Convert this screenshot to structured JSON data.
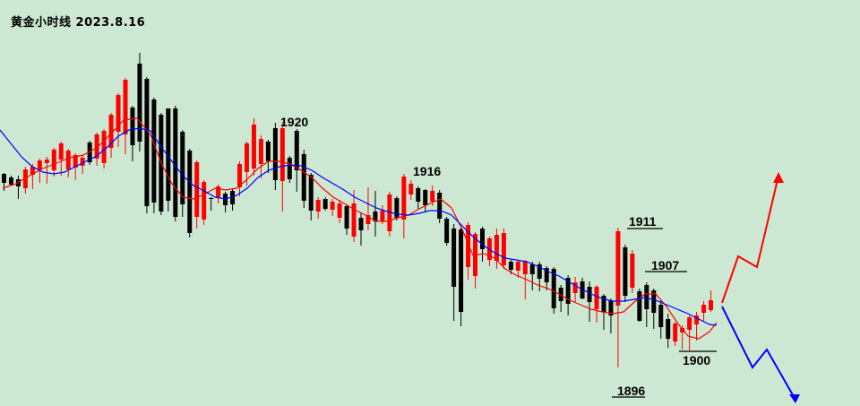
{
  "chart_data": {
    "type": "candlestick",
    "title": "黄金小时线  2023.8.16",
    "annotations": [
      {
        "label": "1920",
        "value": 1920
      },
      {
        "label": "1916",
        "value": 1916
      },
      {
        "label": "1911",
        "value": 1911
      },
      {
        "label": "1907",
        "value": 1907
      },
      {
        "label": "1900",
        "value": 1900
      },
      {
        "label": "1896",
        "value": 1896
      }
    ],
    "series": [
      {
        "kind": "moving-average",
        "color": "#ff0000"
      },
      {
        "kind": "moving-average",
        "color": "#0000ff"
      }
    ],
    "projections": [
      {
        "direction": "up",
        "color": "#ff0000"
      },
      {
        "direction": "down",
        "color": "#0000ff"
      }
    ],
    "colors": {
      "bullish": "#ff0000",
      "bearish": "#000000",
      "background": "#cde8d2"
    },
    "candles": [
      [
        1,
        193,
        213,
        194,
        204,
        0
      ],
      [
        2,
        196,
        207,
        198,
        206,
        0
      ],
      [
        3,
        196,
        222,
        200,
        208,
        0
      ],
      [
        4,
        186,
        216,
        189,
        210,
        1
      ],
      [
        5,
        183,
        211,
        186,
        195,
        1
      ],
      [
        6,
        177,
        204,
        179,
        189,
        1
      ],
      [
        7,
        175,
        205,
        178,
        182,
        1
      ],
      [
        8,
        165,
        197,
        167,
        190,
        1
      ],
      [
        9,
        158,
        196,
        160,
        178,
        1
      ],
      [
        10,
        166,
        198,
        168,
        189,
        1
      ],
      [
        11,
        171,
        201,
        173,
        187,
        1
      ],
      [
        12,
        174,
        194,
        176,
        185,
        1
      ],
      [
        13,
        157,
        184,
        159,
        181,
        0
      ],
      [
        14,
        148,
        185,
        150,
        177,
        1
      ],
      [
        15,
        144,
        188,
        146,
        182,
        1
      ],
      [
        16,
        126,
        176,
        128,
        165,
        1
      ],
      [
        17,
        104,
        164,
        106,
        147,
        1
      ],
      [
        18,
        87,
        172,
        89,
        150,
        1
      ],
      [
        19,
        118,
        180,
        120,
        162,
        0
      ],
      [
        20,
        59,
        169,
        71,
        158,
        0
      ],
      [
        21,
        86,
        238,
        88,
        230,
        0
      ],
      [
        22,
        109,
        238,
        111,
        226,
        0
      ],
      [
        23,
        126,
        240,
        128,
        236,
        0
      ],
      [
        24,
        121,
        236,
        121,
        224,
        0
      ],
      [
        25,
        118,
        247,
        121,
        242,
        0
      ],
      [
        26,
        145,
        242,
        147,
        228,
        0
      ],
      [
        27,
        166,
        265,
        168,
        260,
        0
      ],
      [
        28,
        179,
        255,
        181,
        242,
        1
      ],
      [
        29,
        201,
        251,
        203,
        245,
        1
      ],
      [
        30,
        220,
        235,
        221,
        222,
        0
      ],
      [
        31,
        206,
        227,
        208,
        220,
        1
      ],
      [
        32,
        214,
        237,
        216,
        229,
        0
      ],
      [
        33,
        210,
        235,
        213,
        228,
        0
      ],
      [
        34,
        180,
        219,
        183,
        209,
        1
      ],
      [
        35,
        158,
        207,
        160,
        192,
        1
      ],
      [
        36,
        132,
        196,
        139,
        188,
        1
      ],
      [
        37,
        151,
        199,
        155,
        183,
        1
      ],
      [
        38,
        156,
        193,
        158,
        180,
        0
      ],
      [
        39,
        137,
        212,
        143,
        201,
        0
      ],
      [
        40,
        136,
        236,
        143,
        202,
        1
      ],
      [
        41,
        174,
        204,
        176,
        200,
        0
      ],
      [
        42,
        144,
        214,
        146,
        190,
        0
      ],
      [
        43,
        167,
        232,
        172,
        224,
        0
      ],
      [
        44,
        193,
        246,
        195,
        235,
        0
      ],
      [
        45,
        220,
        244,
        223,
        236,
        1
      ],
      [
        46,
        220,
        235,
        222,
        233,
        0
      ],
      [
        47,
        222,
        241,
        225,
        234,
        1
      ],
      [
        48,
        223,
        249,
        227,
        243,
        1
      ],
      [
        49,
        228,
        262,
        230,
        255,
        0
      ],
      [
        50,
        212,
        270,
        227,
        264,
        1
      ],
      [
        51,
        238,
        274,
        243,
        257,
        0
      ],
      [
        52,
        209,
        257,
        240,
        250,
        1
      ],
      [
        53,
        213,
        264,
        236,
        247,
        0
      ],
      [
        54,
        229,
        250,
        235,
        247,
        1
      ],
      [
        55,
        214,
        264,
        217,
        258,
        1
      ],
      [
        56,
        219,
        246,
        221,
        243,
        0
      ],
      [
        57,
        194,
        266,
        197,
        245,
        1
      ],
      [
        58,
        201,
        223,
        205,
        217,
        1
      ],
      [
        59,
        208,
        233,
        210,
        225,
        0
      ],
      [
        60,
        211,
        236,
        212,
        229,
        0
      ],
      [
        61,
        207,
        230,
        213,
        225,
        1
      ],
      [
        62,
        212,
        249,
        215,
        244,
        0
      ],
      [
        63,
        242,
        274,
        244,
        271,
        0
      ],
      [
        64,
        250,
        358,
        255,
        320,
        0
      ],
      [
        65,
        254,
        364,
        256,
        348,
        0
      ],
      [
        66,
        248,
        312,
        251,
        298,
        1
      ],
      [
        67,
        259,
        322,
        261,
        308,
        1
      ],
      [
        68,
        253,
        292,
        255,
        278,
        0
      ],
      [
        69,
        264,
        297,
        266,
        290,
        1
      ],
      [
        70,
        255,
        300,
        262,
        291,
        1
      ],
      [
        71,
        255,
        300,
        260,
        296,
        1
      ],
      [
        72,
        290,
        306,
        292,
        301,
        0
      ],
      [
        73,
        290,
        310,
        292,
        302,
        1
      ],
      [
        74,
        290,
        334,
        292,
        306,
        1
      ],
      [
        75,
        292,
        324,
        295,
        306,
        0
      ],
      [
        76,
        292,
        325,
        295,
        311,
        0
      ],
      [
        77,
        297,
        324,
        299,
        315,
        0
      ],
      [
        78,
        298,
        350,
        300,
        344,
        0
      ],
      [
        79,
        318,
        348,
        321,
        336,
        0
      ],
      [
        80,
        307,
        352,
        310,
        339,
        0
      ],
      [
        81,
        309,
        337,
        315,
        327,
        1
      ],
      [
        82,
        310,
        334,
        314,
        333,
        0
      ],
      [
        83,
        314,
        359,
        320,
        337,
        0
      ],
      [
        84,
        318,
        360,
        320,
        345,
        1
      ],
      [
        85,
        328,
        368,
        330,
        348,
        0
      ],
      [
        86,
        333,
        372,
        335,
        352,
        0
      ],
      [
        87,
        254,
        410,
        258,
        341,
        1
      ],
      [
        88,
        273,
        337,
        276,
        330,
        0
      ],
      [
        89,
        279,
        327,
        283,
        321,
        1
      ],
      [
        90,
        322,
        359,
        325,
        358,
        0
      ],
      [
        91,
        315,
        365,
        318,
        345,
        0
      ],
      [
        92,
        322,
        367,
        324,
        349,
        0
      ],
      [
        93,
        334,
        378,
        340,
        365,
        0
      ],
      [
        94,
        350,
        388,
        356,
        378,
        0
      ],
      [
        95,
        359,
        386,
        361,
        381,
        1
      ],
      [
        96,
        363,
        390,
        366,
        371,
        1
      ],
      [
        97,
        352,
        391,
        354,
        368,
        1
      ],
      [
        98,
        348,
        380,
        352,
        362,
        1
      ],
      [
        99,
        336,
        359,
        340,
        349,
        1
      ],
      [
        100,
        324,
        348,
        335,
        346,
        1
      ]
    ]
  }
}
